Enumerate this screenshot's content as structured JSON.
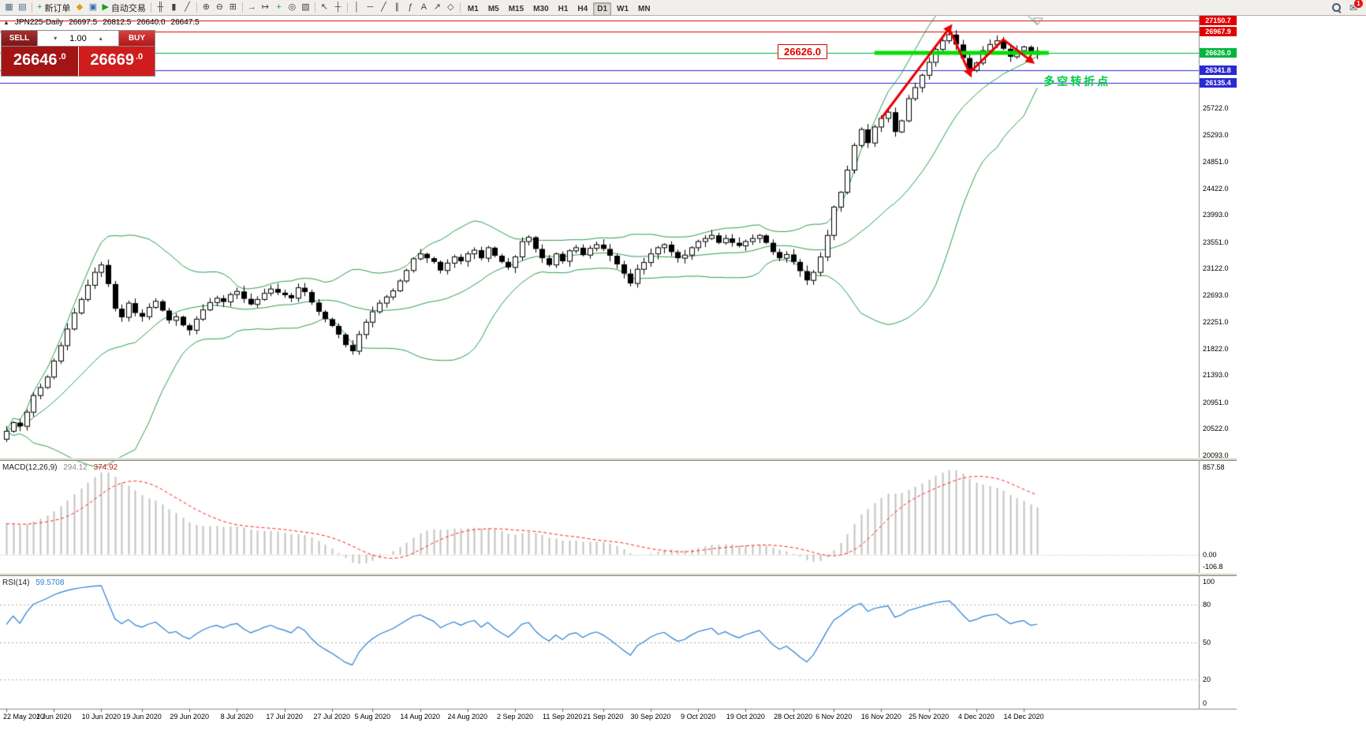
{
  "toolbar": {
    "items": [
      {
        "t": "icon",
        "n": "new-chart-icon",
        "g": "▦",
        "c": "#4a6b8a"
      },
      {
        "t": "icon",
        "n": "profiles-icon",
        "g": "▤",
        "c": "#4a6b8a"
      },
      {
        "t": "sep"
      },
      {
        "t": "btn",
        "n": "new-order-button",
        "g": "+",
        "c": "#18a018",
        "label": "新订单"
      },
      {
        "t": "icon",
        "n": "metaeditor-icon",
        "g": "◆",
        "c": "#e0a010"
      },
      {
        "t": "icon",
        "n": "terminal-icon",
        "g": "▣",
        "c": "#3a6ea5"
      },
      {
        "t": "btn",
        "n": "autotrading-button",
        "g": "▶",
        "c": "#18a018",
        "label": "自动交易"
      },
      {
        "t": "sep"
      },
      {
        "t": "icon",
        "n": "bar-chart-icon",
        "g": "╫",
        "c": "#444444"
      },
      {
        "t": "icon",
        "n": "candlestick-chart-icon",
        "g": "▮",
        "c": "#444444"
      },
      {
        "t": "icon",
        "n": "line-chart-icon",
        "g": "╱",
        "c": "#444444"
      },
      {
        "t": "sep"
      },
      {
        "t": "icon",
        "n": "zoom-in-icon",
        "g": "⊕",
        "c": "#444444"
      },
      {
        "t": "icon",
        "n": "zoom-out-icon",
        "g": "⊖",
        "c": "#444444"
      },
      {
        "t": "icon",
        "n": "tile-windows-icon",
        "g": "⊞",
        "c": "#444444"
      },
      {
        "t": "sep"
      },
      {
        "t": "icon",
        "n": "auto-sc roll-icon",
        "g": "→",
        "c": "#444444"
      },
      {
        "t": "icon",
        "n": "chart-shift-icon",
        "g": "↦",
        "c": "#444444"
      },
      {
        "t": "icon",
        "n": "indicators-icon",
        "g": "+",
        "c": "#18a018"
      },
      {
        "t": "icon",
        "n": "periods-icon",
        "g": "◎",
        "c": "#444444"
      },
      {
        "t": "icon",
        "n": "templates-icon",
        "g": "▧",
        "c": "#444444"
      },
      {
        "t": "sep"
      },
      {
        "t": "icon",
        "n": "cursor-icon",
        "g": "↖",
        "c": "#444444"
      },
      {
        "t": "icon",
        "n": "crosshair-icon",
        "g": "┼",
        "c": "#444444"
      },
      {
        "t": "sep"
      },
      {
        "t": "icon",
        "n": "vertical-line-icon",
        "g": "│",
        "c": "#444444"
      },
      {
        "t": "icon",
        "n": "horizontal-line-icon",
        "g": "─",
        "c": "#444444"
      },
      {
        "t": "icon",
        "n": "trendline-icon",
        "g": "╱",
        "c": "#444444"
      },
      {
        "t": "icon",
        "n": "equidistant-channel-icon",
        "g": "∥",
        "c": "#444444"
      },
      {
        "t": "icon",
        "n": "fibonacci-icon",
        "g": "ƒ",
        "c": "#444444"
      },
      {
        "t": "icon",
        "n": "text-icon",
        "g": "A",
        "c": "#444444"
      },
      {
        "t": "icon",
        "n": "arrows-icon",
        "g": "↗",
        "c": "#444444"
      },
      {
        "t": "icon",
        "n": "shapes-icon",
        "g": "◇",
        "c": "#444444"
      },
      {
        "t": "sep"
      }
    ],
    "timeframes": [
      "M1",
      "M5",
      "M15",
      "M30",
      "H1",
      "H4",
      "D1",
      "W1",
      "MN"
    ],
    "active_timeframe": "D1",
    "notifications_glyph": "✉",
    "notification_badge": "1"
  },
  "symbol_header": {
    "collapse_glyph": "▲",
    "title": "JPN225-Daily",
    "open": "26697.5",
    "high": "26812.5",
    "low": "26640.0",
    "close": "26647.5"
  },
  "trade_panel": {
    "sell_label": "SELL",
    "buy_label": "BUY",
    "volume": "1.00",
    "spin_up": "▴",
    "spin_down": "▾",
    "sell_price": "26646",
    "sell_pip": ".0",
    "buy_price": "26669",
    "buy_pip": ".0"
  },
  "chart_data": {
    "type": "candlestick",
    "symbol": "JPN225",
    "timeframe": "Daily",
    "price_range": [
      20050,
      27200
    ],
    "y_ticks": [
      "25722.0",
      "25293.0",
      "24851.0",
      "24422.0",
      "23993.0",
      "23551.0",
      "23122.0",
      "22693.0",
      "22251.0",
      "21822.0",
      "21393.0",
      "20951.0",
      "20522.0",
      "20093.0"
    ],
    "x_labels": [
      {
        "text": "22 May 2020",
        "bar": 0
      },
      {
        "text": "1 Jun 2020",
        "bar": 7
      },
      {
        "text": "10 Jun 2020",
        "bar": 14
      },
      {
        "text": "19 Jun 2020",
        "bar": 20
      },
      {
        "text": "29 Jun 2020",
        "bar": 27
      },
      {
        "text": "8 Jul 2020",
        "bar": 34
      },
      {
        "text": "17 Jul 2020",
        "bar": 41
      },
      {
        "text": "27 Jul 2020",
        "bar": 48
      },
      {
        "text": "5 Aug 2020",
        "bar": 54
      },
      {
        "text": "14 Aug 2020",
        "bar": 61
      },
      {
        "text": "24 Aug 2020",
        "bar": 68
      },
      {
        "text": "2 Sep 2020",
        "bar": 75
      },
      {
        "text": "11 Sep 2020",
        "bar": 82
      },
      {
        "text": "21 Sep 2020",
        "bar": 88
      },
      {
        "text": "30 Sep 2020",
        "bar": 95
      },
      {
        "text": "9 Oct 2020",
        "bar": 102
      },
      {
        "text": "19 Oct 2020",
        "bar": 109
      },
      {
        "text": "28 Oct 2020",
        "bar": 116
      },
      {
        "text": "6 Nov 2020",
        "bar": 122
      },
      {
        "text": "16 Nov 2020",
        "bar": 129
      },
      {
        "text": "25 Nov 2020",
        "bar": 136
      },
      {
        "text": "4 Dec 2020",
        "bar": 143
      },
      {
        "text": "14 Dec 2020",
        "bar": 150
      }
    ],
    "closes": [
      20480,
      20620,
      20560,
      20790,
      21060,
      21190,
      21360,
      21620,
      21870,
      22140,
      22400,
      22620,
      22850,
      23060,
      23180,
      22870,
      22470,
      22330,
      22560,
      22400,
      22340,
      22490,
      22590,
      22440,
      22280,
      22340,
      22200,
      22120,
      22300,
      22450,
      22570,
      22640,
      22580,
      22700,
      22750,
      22630,
      22540,
      22620,
      22720,
      22790,
      22730,
      22690,
      22640,
      22810,
      22740,
      22570,
      22420,
      22300,
      22190,
      22050,
      21880,
      21780,
      22050,
      22250,
      22420,
      22560,
      22660,
      22760,
      22920,
      23090,
      23280,
      23360,
      23290,
      23230,
      23090,
      23210,
      23310,
      23240,
      23360,
      23420,
      23290,
      23460,
      23330,
      23230,
      23140,
      23310,
      23560,
      23630,
      23440,
      23290,
      23180,
      23360,
      23240,
      23410,
      23460,
      23340,
      23450,
      23510,
      23440,
      23330,
      23190,
      23040,
      22880,
      23110,
      23220,
      23360,
      23460,
      23510,
      23390,
      23290,
      23340,
      23460,
      23560,
      23610,
      23660,
      23540,
      23610,
      23540,
      23490,
      23560,
      23610,
      23660,
      23540,
      23390,
      23290,
      23350,
      23230,
      23080,
      22930,
      23060,
      23310,
      23660,
      24120,
      24360,
      24720,
      25120,
      25380,
      25160,
      25420,
      25560,
      25660,
      25340,
      25520,
      25880,
      26060,
      26260,
      26470,
      26680,
      26820,
      26920,
      26760,
      26540,
      26340,
      26460,
      26660,
      26760,
      26820,
      26690,
      26560,
      26660,
      26720,
      26600,
      26647.5
    ],
    "h_lines": [
      {
        "price": 27150.7,
        "color": "#e00000"
      },
      {
        "price": 26967.9,
        "color": "#e00000"
      },
      {
        "price": 26626.0,
        "color": "#00b43c"
      },
      {
        "price": 26341.8,
        "color": "#2a2ad4"
      },
      {
        "price": 26135.4,
        "color": "#2a2ad4"
      }
    ],
    "highlight_segment": {
      "price": 26626.0,
      "from_bar": 128,
      "to_bar": 153,
      "color": "#00e000"
    },
    "zigzag": {
      "color": "#e80000",
      "points": [
        {
          "bar": 129,
          "price": 25560
        },
        {
          "bar": 139,
          "price": 27020
        },
        {
          "bar": 142,
          "price": 26300
        },
        {
          "bar": 147,
          "price": 26840
        },
        {
          "bar": 151,
          "price": 26500
        }
      ]
    },
    "price_label": {
      "text": "26626.0",
      "price": 26626.0
    },
    "annotation": {
      "text": "多空转折点",
      "bar": 152,
      "price": 26170,
      "color": "#00cc44"
    },
    "indicators": {
      "bollinger": {
        "period": 20,
        "deviation": 2,
        "color": "#2e9e4f"
      },
      "macd": {
        "name": "MACD(12,26,9)",
        "value_main": "294.12",
        "value_signal": "374.92",
        "scale": [
          "857.58",
          "0.00",
          "-106.8"
        ],
        "histogram_color": "#c2c2c2",
        "signal_color": "#ff2020"
      },
      "rsi": {
        "name": "RSI(14)",
        "value": "59.5708",
        "scale": [
          "100",
          "80",
          "50",
          "20",
          "0"
        ],
        "levels": [
          80,
          50,
          20
        ],
        "color": "#2a7fd4"
      }
    }
  }
}
